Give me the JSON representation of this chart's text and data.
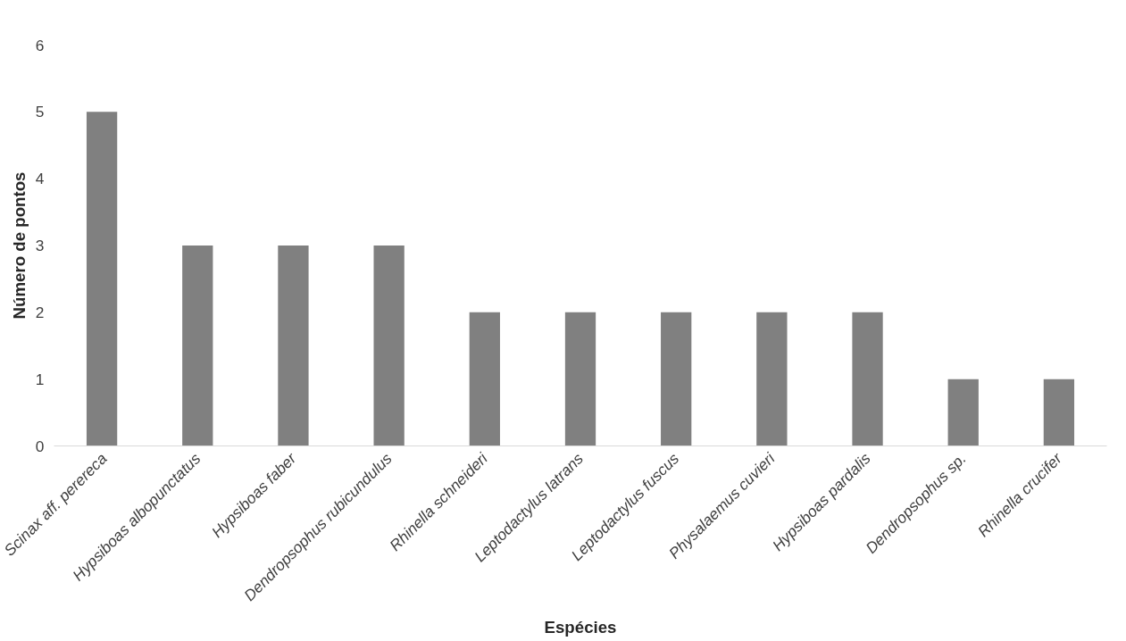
{
  "chart_data": {
    "type": "bar",
    "xlabel": "Espécies",
    "ylabel": "Número de pontos",
    "categories": [
      "Scinax aff. perereca",
      "Hypsiboas albopunctatus",
      "Hypsiboas faber",
      "Dendropsophus rubicundulus",
      "Rhinella schneideri",
      "Leptodactylus latrans",
      "Leptodactylus fuscus",
      "Physalaemus cuvieri",
      "Hypsiboas pardalis",
      "Dendropsophus sp.",
      "Rhinella crucifer"
    ],
    "values": [
      5,
      3,
      3,
      3,
      2,
      2,
      2,
      2,
      2,
      1,
      1
    ],
    "color": "#808080",
    "ylim": [
      0,
      6
    ],
    "yticks": [
      0,
      1,
      2,
      3,
      4,
      5,
      6
    ]
  }
}
